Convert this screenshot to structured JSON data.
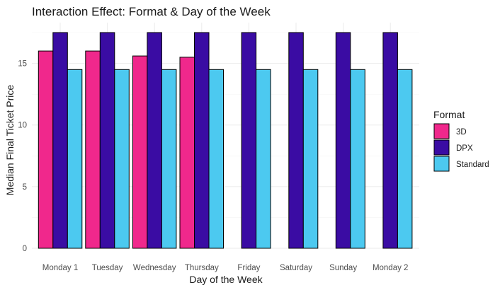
{
  "chart_data": {
    "type": "bar",
    "title": "Interaction Effect: Format & Day of the Week",
    "xlabel": "Day of the Week",
    "ylabel": "Median Final Ticket Price",
    "ylim": [
      0,
      17.5
    ],
    "yticks": [
      0,
      5,
      10,
      15
    ],
    "categories": [
      "Monday 1",
      "Tuesday",
      "Wednesday",
      "Thursday",
      "Friday",
      "Saturday",
      "Sunday",
      "Monday 2"
    ],
    "legend_title": "Format",
    "legend_position": "right",
    "series": [
      {
        "name": "3D",
        "color": "#F0288C",
        "values": [
          16.0,
          16.0,
          15.6,
          15.5,
          null,
          null,
          null,
          null
        ]
      },
      {
        "name": "DPX",
        "color": "#3A0CA3",
        "values": [
          17.5,
          17.5,
          17.5,
          17.5,
          17.5,
          17.5,
          17.5,
          17.5
        ]
      },
      {
        "name": "Standard",
        "color": "#4CC9F0",
        "values": [
          14.5,
          14.5,
          14.5,
          14.5,
          14.5,
          14.5,
          14.5,
          14.5
        ]
      }
    ]
  }
}
